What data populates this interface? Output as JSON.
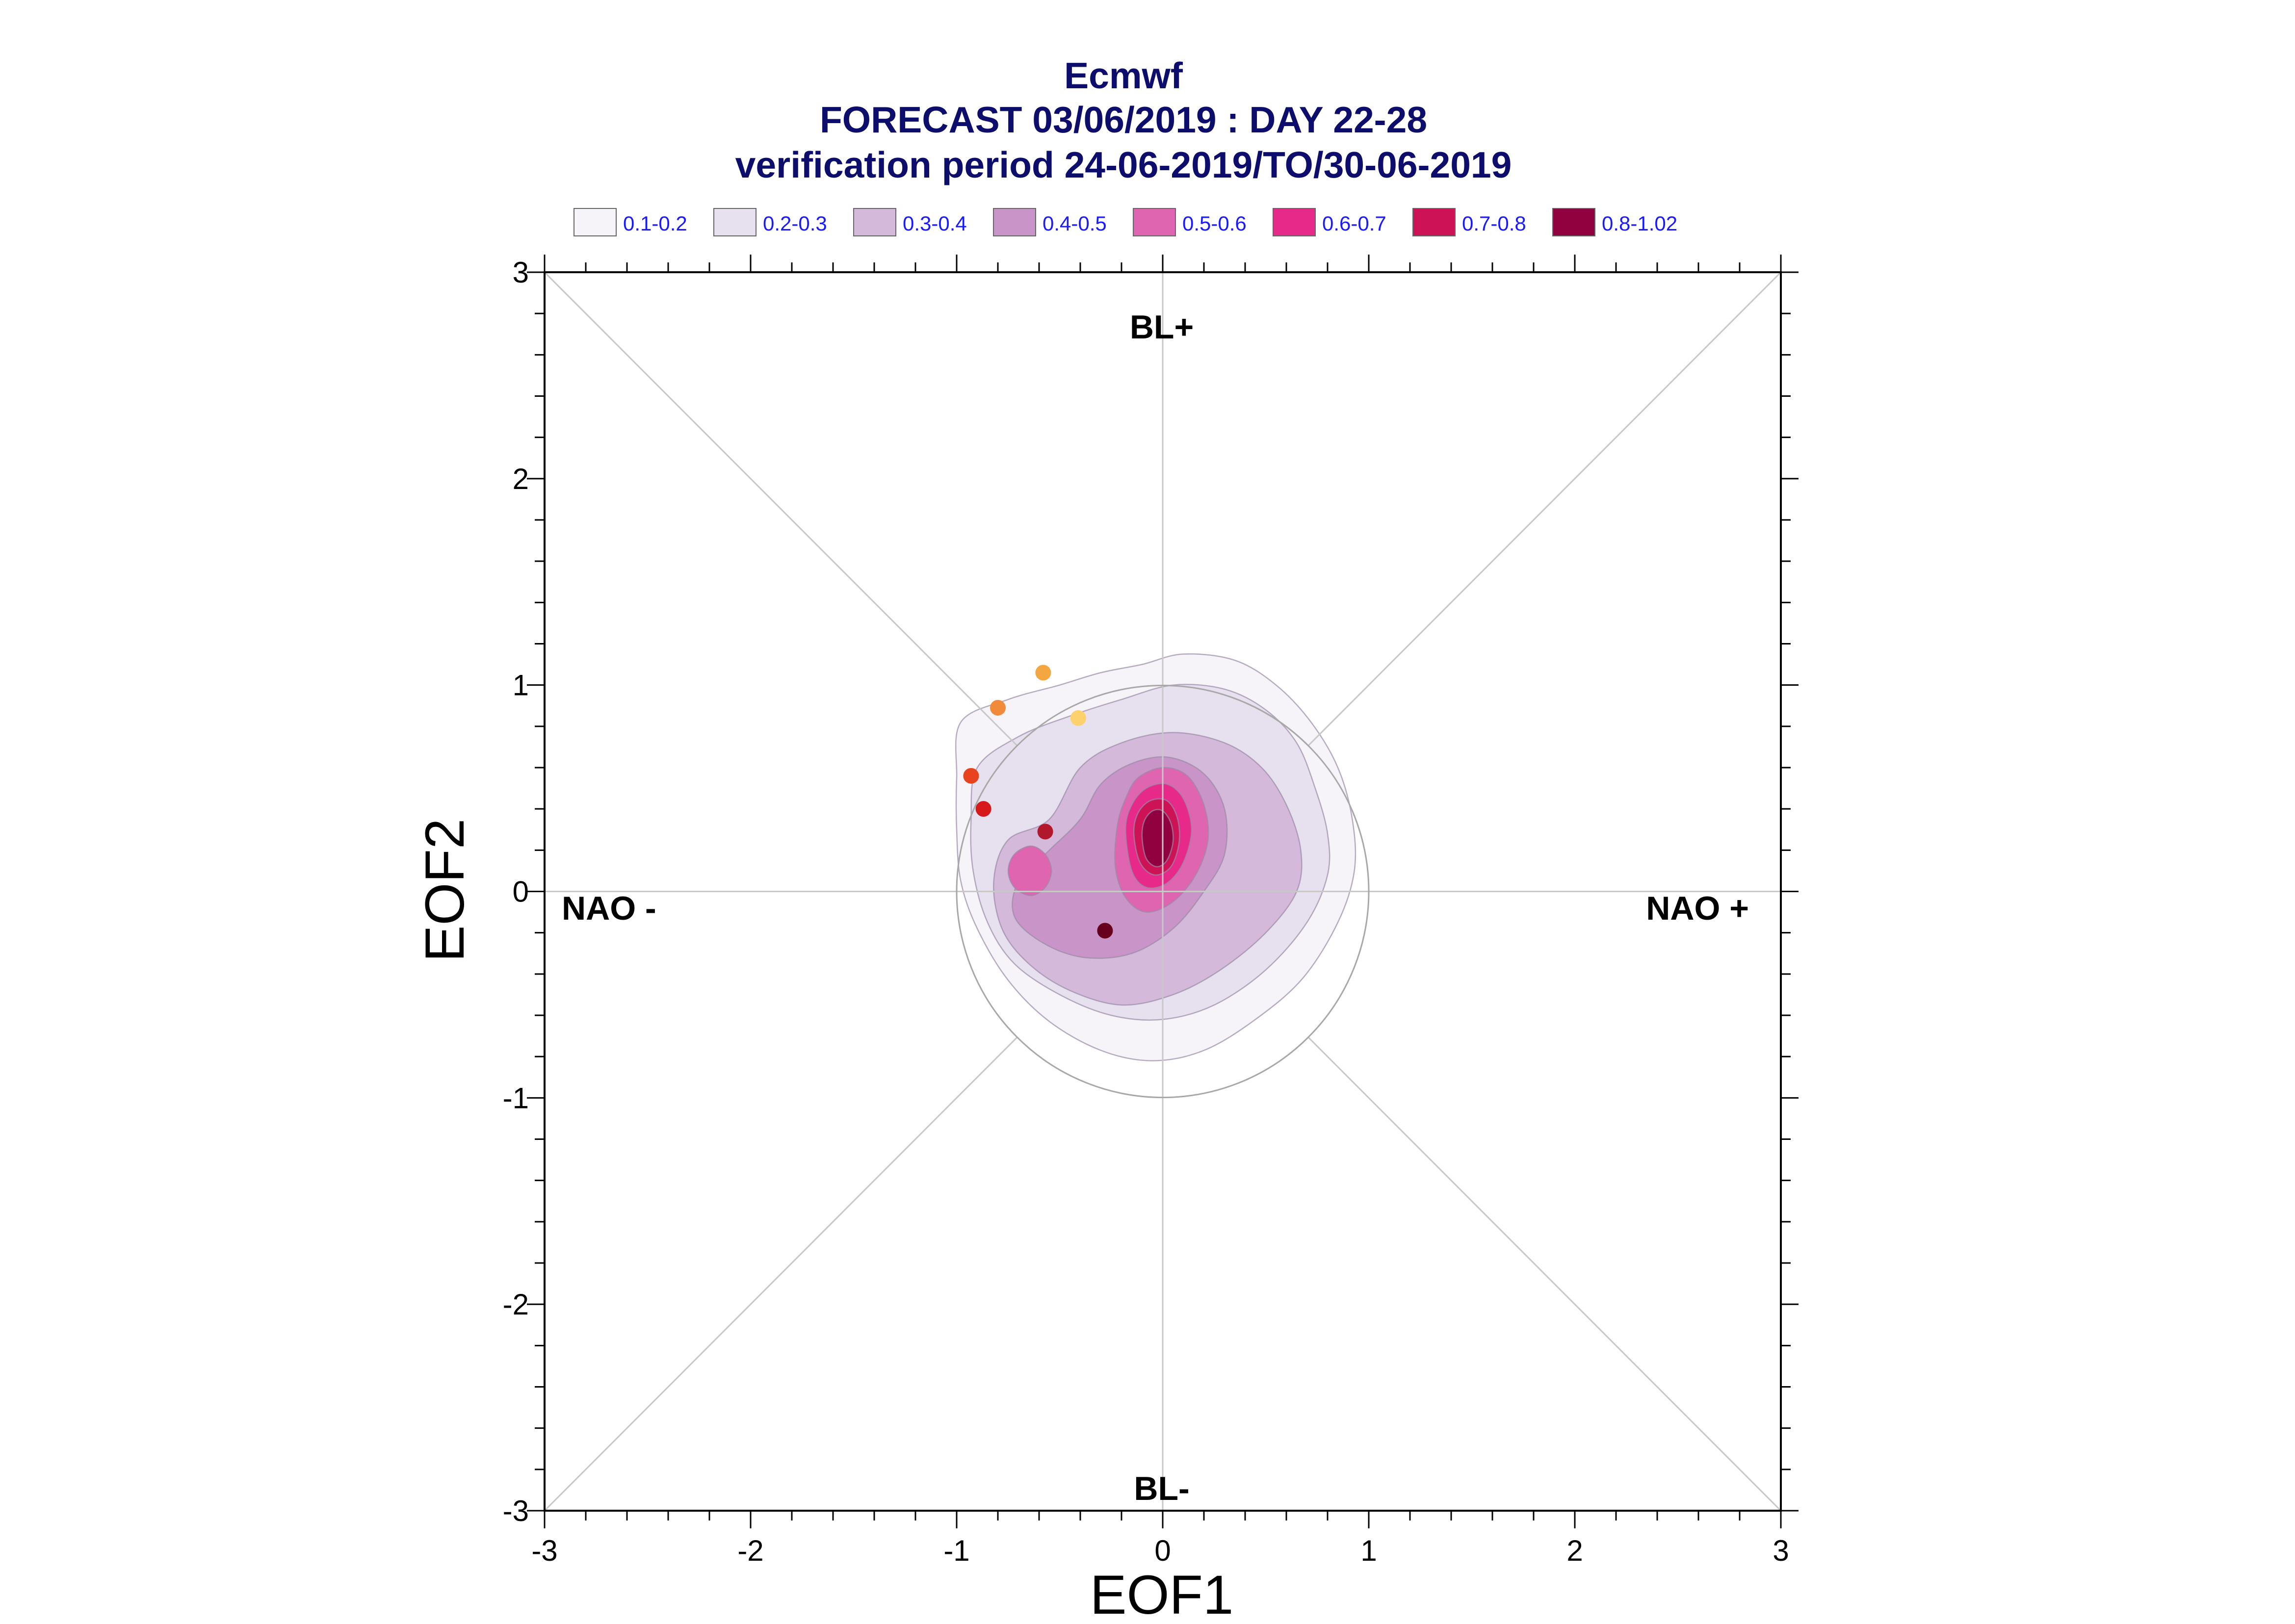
{
  "title": {
    "line1": "Ecmwf",
    "line2": "FORECAST 03/06/2019 : DAY 22-28",
    "line3": "verification period 24-06-2019/TO/30-06-2019"
  },
  "legend": [
    {
      "label": "0.1-0.2",
      "color": "#f7f4f9"
    },
    {
      "label": "0.2-0.3",
      "color": "#e7e1ef"
    },
    {
      "label": "0.3-0.4",
      "color": "#d4b9da"
    },
    {
      "label": "0.4-0.5",
      "color": "#c994c7"
    },
    {
      "label": "0.5-0.6",
      "color": "#df65b0"
    },
    {
      "label": "0.6-0.7",
      "color": "#e7298a"
    },
    {
      "label": "0.7-0.8",
      "color": "#ce1256"
    },
    {
      "label": "0.8-1.02",
      "color": "#91003f"
    }
  ],
  "regime_labels": {
    "top": "BL+",
    "bottom": "BL-",
    "left": "NAO -",
    "right": "NAO +"
  },
  "chart_data": {
    "type": "scatter",
    "xlabel": "EOF1",
    "ylabel": "EOF2",
    "xlim": [
      -3,
      3
    ],
    "ylim": [
      -3,
      3
    ],
    "xticks": [
      "-3",
      "-2",
      "-1",
      "0",
      "1",
      "2",
      "3"
    ],
    "yticks": [
      "-3",
      "-2",
      "-1",
      "0",
      "1",
      "2",
      "3"
    ],
    "reference_circle_radius": 1,
    "points": [
      {
        "x": -0.58,
        "y": 1.06,
        "color": "#f4a641"
      },
      {
        "x": -0.8,
        "y": 0.89,
        "color": "#f28a3c"
      },
      {
        "x": -0.41,
        "y": 0.84,
        "color": "#fdd26e"
      },
      {
        "x": -0.93,
        "y": 0.56,
        "color": "#e8431f"
      },
      {
        "x": -0.87,
        "y": 0.4,
        "color": "#d7191c"
      },
      {
        "x": -0.57,
        "y": 0.29,
        "color": "#b2182b"
      },
      {
        "x": -0.28,
        "y": -0.19,
        "color": "#67001f"
      }
    ],
    "density_contours": [
      {
        "level": "0.1-0.2",
        "color": "#f7f4f9",
        "polygon": [
          [
            -0.98,
            0.82
          ],
          [
            -0.75,
            0.93
          ],
          [
            -0.5,
            1.0
          ],
          [
            -0.3,
            1.06
          ],
          [
            -0.1,
            1.1
          ],
          [
            0.1,
            1.15
          ],
          [
            0.35,
            1.12
          ],
          [
            0.55,
            1.0
          ],
          [
            0.72,
            0.82
          ],
          [
            0.85,
            0.6
          ],
          [
            0.92,
            0.35
          ],
          [
            0.93,
            0.1
          ],
          [
            0.85,
            -0.15
          ],
          [
            0.68,
            -0.42
          ],
          [
            0.45,
            -0.62
          ],
          [
            0.2,
            -0.77
          ],
          [
            -0.05,
            -0.82
          ],
          [
            -0.3,
            -0.77
          ],
          [
            -0.55,
            -0.63
          ],
          [
            -0.75,
            -0.43
          ],
          [
            -0.9,
            -0.18
          ],
          [
            -0.98,
            0.05
          ],
          [
            -1.0,
            0.3
          ],
          [
            -1.0,
            0.55
          ]
        ]
      },
      {
        "level": "0.2-0.3",
        "color": "#e7e1ef",
        "polygon": [
          [
            -0.9,
            0.6
          ],
          [
            -0.7,
            0.75
          ],
          [
            -0.45,
            0.85
          ],
          [
            -0.2,
            0.93
          ],
          [
            0.05,
            1.0
          ],
          [
            0.3,
            0.98
          ],
          [
            0.5,
            0.88
          ],
          [
            0.65,
            0.72
          ],
          [
            0.74,
            0.5
          ],
          [
            0.8,
            0.28
          ],
          [
            0.8,
            0.08
          ],
          [
            0.7,
            -0.15
          ],
          [
            0.5,
            -0.38
          ],
          [
            0.25,
            -0.55
          ],
          [
            0.0,
            -0.62
          ],
          [
            -0.25,
            -0.6
          ],
          [
            -0.5,
            -0.5
          ],
          [
            -0.72,
            -0.35
          ],
          [
            -0.85,
            -0.15
          ],
          [
            -0.92,
            0.1
          ],
          [
            -0.93,
            0.35
          ]
        ]
      },
      {
        "level": "0.3-0.4",
        "color": "#d4b9da",
        "polygon": [
          [
            -0.75,
            0.25
          ],
          [
            -0.55,
            0.35
          ],
          [
            -0.4,
            0.6
          ],
          [
            -0.2,
            0.72
          ],
          [
            0.05,
            0.77
          ],
          [
            0.3,
            0.72
          ],
          [
            0.48,
            0.6
          ],
          [
            0.6,
            0.42
          ],
          [
            0.67,
            0.2
          ],
          [
            0.65,
            0.0
          ],
          [
            0.5,
            -0.2
          ],
          [
            0.28,
            -0.38
          ],
          [
            0.05,
            -0.5
          ],
          [
            -0.2,
            -0.55
          ],
          [
            -0.45,
            -0.48
          ],
          [
            -0.65,
            -0.35
          ],
          [
            -0.78,
            -0.18
          ],
          [
            -0.82,
            0.05
          ]
        ]
      },
      {
        "level": "0.4-0.5",
        "color": "#c994c7",
        "polygon": [
          [
            -0.7,
            0.05
          ],
          [
            -0.55,
            0.2
          ],
          [
            -0.4,
            0.35
          ],
          [
            -0.3,
            0.52
          ],
          [
            -0.15,
            0.62
          ],
          [
            0.03,
            0.65
          ],
          [
            0.2,
            0.57
          ],
          [
            0.3,
            0.4
          ],
          [
            0.3,
            0.18
          ],
          [
            0.2,
            0.0
          ],
          [
            0.05,
            -0.18
          ],
          [
            -0.15,
            -0.3
          ],
          [
            -0.38,
            -0.32
          ],
          [
            -0.58,
            -0.25
          ],
          [
            -0.72,
            -0.12
          ]
        ]
      },
      {
        "level": "0.5-0.6",
        "color": "#df65b0",
        "polygon": [
          [
            -0.22,
            0.32
          ],
          [
            -0.18,
            0.45
          ],
          [
            -0.12,
            0.55
          ],
          [
            0.0,
            0.6
          ],
          [
            0.12,
            0.56
          ],
          [
            0.2,
            0.42
          ],
          [
            0.22,
            0.25
          ],
          [
            0.16,
            0.08
          ],
          [
            0.05,
            -0.05
          ],
          [
            -0.08,
            -0.1
          ],
          [
            -0.18,
            -0.03
          ],
          [
            -0.23,
            0.12
          ]
        ]
      },
      {
        "level": "0.5-0.6",
        "color": "#df65b0",
        "polygon": [
          [
            -0.75,
            0.1
          ],
          [
            -0.72,
            0.18
          ],
          [
            -0.64,
            0.22
          ],
          [
            -0.57,
            0.18
          ],
          [
            -0.54,
            0.1
          ],
          [
            -0.57,
            0.02
          ],
          [
            -0.64,
            -0.02
          ],
          [
            -0.72,
            0.02
          ]
        ]
      },
      {
        "level": "0.6-0.7",
        "color": "#e7298a",
        "polygon": [
          [
            -0.18,
            0.3
          ],
          [
            -0.15,
            0.42
          ],
          [
            -0.08,
            0.5
          ],
          [
            0.02,
            0.52
          ],
          [
            0.1,
            0.45
          ],
          [
            0.14,
            0.3
          ],
          [
            0.1,
            0.14
          ],
          [
            0.02,
            0.04
          ],
          [
            -0.08,
            0.02
          ],
          [
            -0.15,
            0.1
          ]
        ]
      },
      {
        "level": "0.7-0.8",
        "color": "#ce1256",
        "polygon": [
          [
            -0.14,
            0.28
          ],
          [
            -0.12,
            0.38
          ],
          [
            -0.06,
            0.44
          ],
          [
            0.02,
            0.44
          ],
          [
            0.07,
            0.36
          ],
          [
            0.08,
            0.24
          ],
          [
            0.04,
            0.12
          ],
          [
            -0.04,
            0.08
          ],
          [
            -0.11,
            0.14
          ]
        ]
      },
      {
        "level": "0.8-1.02",
        "color": "#91003f",
        "polygon": [
          [
            -0.1,
            0.26
          ],
          [
            -0.09,
            0.34
          ],
          [
            -0.05,
            0.39
          ],
          [
            0.0,
            0.39
          ],
          [
            0.04,
            0.33
          ],
          [
            0.05,
            0.24
          ],
          [
            0.02,
            0.15
          ],
          [
            -0.03,
            0.12
          ],
          [
            -0.08,
            0.16
          ]
        ]
      }
    ]
  }
}
